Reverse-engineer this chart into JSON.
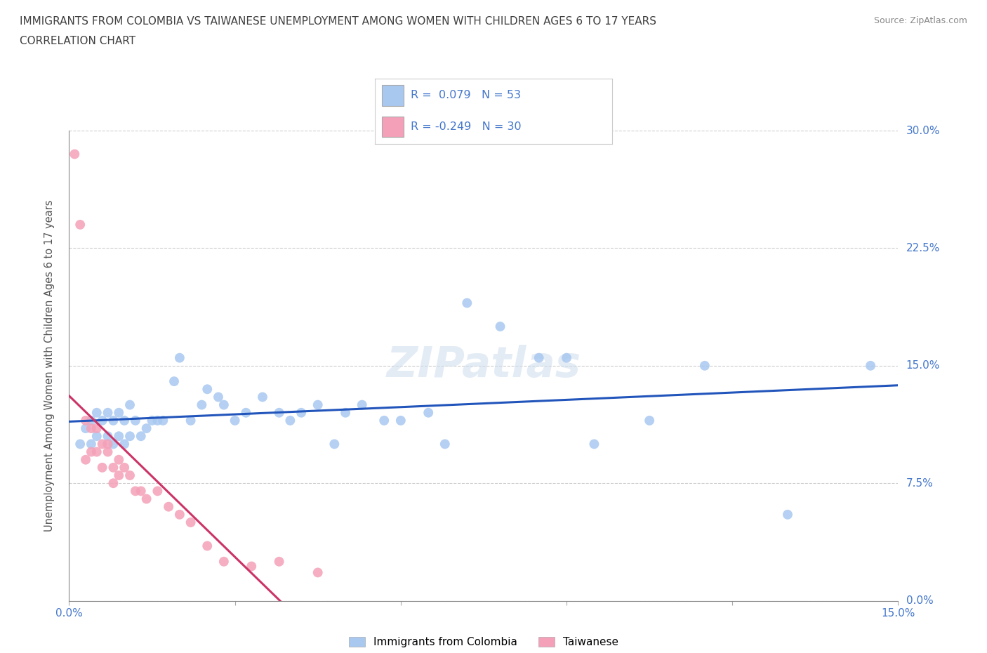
{
  "title_line1": "IMMIGRANTS FROM COLOMBIA VS TAIWANESE UNEMPLOYMENT AMONG WOMEN WITH CHILDREN AGES 6 TO 17 YEARS",
  "title_line2": "CORRELATION CHART",
  "source": "Source: ZipAtlas.com",
  "ylabel": "Unemployment Among Women with Children Ages 6 to 17 years",
  "xlim": [
    0.0,
    0.15
  ],
  "ylim": [
    0.0,
    0.3
  ],
  "xtick_vals": [
    0.0,
    0.03,
    0.06,
    0.09,
    0.12,
    0.15
  ],
  "xticklabels": [
    "0.0%",
    "",
    "",
    "",
    "",
    "15.0%"
  ],
  "ytick_vals": [
    0.0,
    0.075,
    0.15,
    0.225,
    0.3
  ],
  "yticklabels": [
    "0.0%",
    "7.5%",
    "15.0%",
    "22.5%",
    "30.0%"
  ],
  "colombia_R": 0.079,
  "colombia_N": 53,
  "taiwanese_R": -0.249,
  "taiwanese_N": 30,
  "colombia_color": "#a8c8f0",
  "taiwan_color": "#f4a0b8",
  "colombia_line_color": "#2255bb",
  "taiwan_line_color": "#cc3366",
  "label_color": "#4477cc",
  "tick_color": "#4477cc",
  "colombia_x": [
    0.002,
    0.003,
    0.004,
    0.004,
    0.005,
    0.005,
    0.006,
    0.007,
    0.007,
    0.008,
    0.008,
    0.009,
    0.009,
    0.01,
    0.01,
    0.011,
    0.011,
    0.012,
    0.013,
    0.014,
    0.015,
    0.016,
    0.017,
    0.019,
    0.02,
    0.022,
    0.024,
    0.025,
    0.027,
    0.028,
    0.03,
    0.032,
    0.035,
    0.038,
    0.04,
    0.042,
    0.045,
    0.048,
    0.05,
    0.053,
    0.057,
    0.06,
    0.065,
    0.068,
    0.072,
    0.078,
    0.085,
    0.09,
    0.095,
    0.105,
    0.115,
    0.13,
    0.145
  ],
  "colombia_y": [
    0.1,
    0.11,
    0.115,
    0.1,
    0.105,
    0.12,
    0.115,
    0.105,
    0.12,
    0.1,
    0.115,
    0.105,
    0.12,
    0.1,
    0.115,
    0.105,
    0.125,
    0.115,
    0.105,
    0.11,
    0.115,
    0.115,
    0.115,
    0.14,
    0.155,
    0.115,
    0.125,
    0.135,
    0.13,
    0.125,
    0.115,
    0.12,
    0.13,
    0.12,
    0.115,
    0.12,
    0.125,
    0.1,
    0.12,
    0.125,
    0.115,
    0.115,
    0.12,
    0.1,
    0.19,
    0.175,
    0.155,
    0.155,
    0.1,
    0.115,
    0.15,
    0.055,
    0.15
  ],
  "taiwan_x": [
    0.001,
    0.002,
    0.003,
    0.003,
    0.004,
    0.004,
    0.005,
    0.005,
    0.006,
    0.006,
    0.007,
    0.007,
    0.008,
    0.008,
    0.009,
    0.009,
    0.01,
    0.011,
    0.012,
    0.013,
    0.014,
    0.016,
    0.018,
    0.02,
    0.022,
    0.025,
    0.028,
    0.033,
    0.038,
    0.045
  ],
  "taiwan_y": [
    0.285,
    0.24,
    0.115,
    0.09,
    0.095,
    0.11,
    0.095,
    0.11,
    0.1,
    0.085,
    0.095,
    0.1,
    0.085,
    0.075,
    0.09,
    0.08,
    0.085,
    0.08,
    0.07,
    0.07,
    0.065,
    0.07,
    0.06,
    0.055,
    0.05,
    0.035,
    0.025,
    0.022,
    0.025,
    0.018
  ]
}
